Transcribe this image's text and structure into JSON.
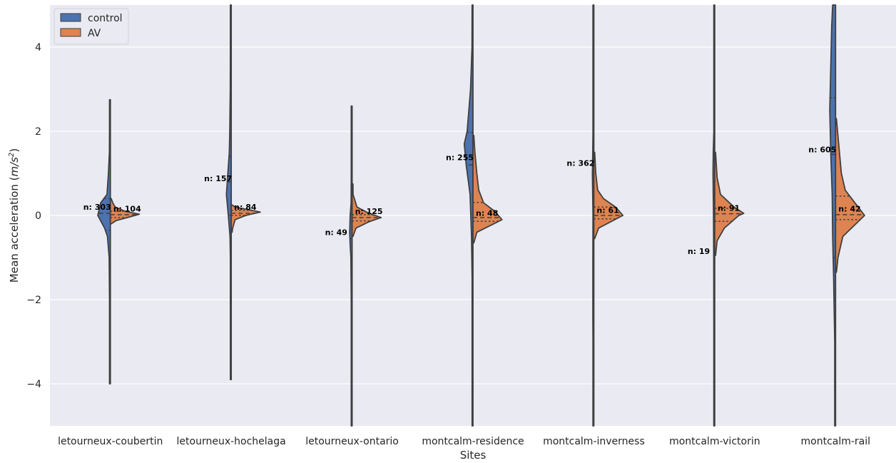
{
  "chart_data": {
    "type": "violin",
    "xlabel": "Sites",
    "ylabel_prefix": "Mean acceleration (",
    "ylabel_unit_var": "m/s",
    "ylabel_unit_exp": "2",
    "ylabel_suffix": ")",
    "ylim": [
      -5,
      5
    ],
    "yticks": [
      -4,
      -2,
      0,
      2,
      4
    ],
    "ytick_labels": [
      "−4",
      "−2",
      "0",
      "2",
      "4"
    ],
    "grid": true,
    "legend": {
      "placement": "top-left",
      "entries": [
        {
          "name": "control",
          "color": "#4c72b0"
        },
        {
          "name": "AV",
          "color": "#dd8452"
        }
      ]
    },
    "categories": [
      "letourneux-coubertin",
      "letourneux-hochelaga",
      "letourneux-ontario",
      "montcalm-residence",
      "montcalm-inverness",
      "montcalm-victorin",
      "montcalm-rail"
    ],
    "series": [
      {
        "name": "control",
        "side": "left",
        "color": "#4c72b0",
        "n_labels": [
          "n: 303",
          "n: 157",
          "n: 49",
          "n: 255",
          "n: 362",
          "n: 19",
          "n: 605"
        ],
        "n_label_y": [
          0.2,
          0.88,
          -0.4,
          1.38,
          1.25,
          -0.85,
          1.57
        ],
        "quartiles": [
          [
            -0.35,
            0.05,
            0.4
          ],
          [
            0.0,
            0.8,
            1.4
          ],
          [
            -1.45,
            -0.55,
            0.05
          ],
          [
            -0.45,
            1.2,
            1.97
          ],
          [
            -1.0,
            0.0,
            2.3
          ],
          [
            -2.7,
            -1.0,
            0.8
          ],
          [
            -1.0,
            1.45,
            2.8
          ]
        ],
        "profiles": [
          [
            [
              -4.0,
              0.002
            ],
            [
              -3.0,
              0.005
            ],
            [
              -2.0,
              0.01
            ],
            [
              -1.0,
              0.025
            ],
            [
              -0.5,
              0.06
            ],
            [
              -0.3,
              0.12
            ],
            [
              0.0,
              0.26
            ],
            [
              0.3,
              0.2
            ],
            [
              0.5,
              0.07
            ],
            [
              1.0,
              0.04
            ],
            [
              1.5,
              0.02
            ],
            [
              2.0,
              0.008
            ],
            [
              2.75,
              0.002
            ]
          ],
          [
            [
              -3.9,
              0.002
            ],
            [
              -2.0,
              0.004
            ],
            [
              -1.0,
              0.01
            ],
            [
              -0.5,
              0.025
            ],
            [
              0.0,
              0.06
            ],
            [
              0.5,
              0.1
            ],
            [
              1.0,
              0.07
            ],
            [
              1.5,
              0.04
            ],
            [
              2.0,
              0.03
            ],
            [
              3.0,
              0.02
            ],
            [
              4.0,
              0.01
            ],
            [
              5.0,
              0.006
            ]
          ],
          [
            [
              -5.0,
              0.004
            ],
            [
              -3.0,
              0.007
            ],
            [
              -2.0,
              0.012
            ],
            [
              -1.0,
              0.025
            ],
            [
              -0.7,
              0.04
            ],
            [
              -0.4,
              0.05
            ],
            [
              0.0,
              0.04
            ],
            [
              0.3,
              0.02
            ],
            [
              1.0,
              0.015
            ],
            [
              2.0,
              0.008
            ],
            [
              2.6,
              0.002
            ]
          ],
          [
            [
              -5.0,
              0.002
            ],
            [
              -3.0,
              0.007
            ],
            [
              -1.5,
              0.015
            ],
            [
              -0.5,
              0.03
            ],
            [
              0.5,
              0.06
            ],
            [
              1.2,
              0.14
            ],
            [
              1.7,
              0.18
            ],
            [
              2.0,
              0.12
            ],
            [
              3.0,
              0.05
            ],
            [
              4.0,
              0.02
            ],
            [
              5.0,
              0.008
            ]
          ],
          [
            [
              -5.0,
              0.003
            ],
            [
              -3.0,
              0.015
            ],
            [
              -2.5,
              0.02
            ],
            [
              -1.0,
              0.02
            ],
            [
              0.0,
              0.015
            ],
            [
              1.0,
              0.03
            ],
            [
              1.25,
              0.025
            ],
            [
              2.0,
              0.01
            ],
            [
              3.0,
              0.008
            ],
            [
              5.0,
              0.006
            ]
          ],
          [
            [
              -5.0,
              0.004
            ],
            [
              -3.0,
              0.01
            ],
            [
              -1.0,
              0.02
            ],
            [
              0.0,
              0.025
            ],
            [
              0.5,
              0.03
            ],
            [
              1.0,
              0.035
            ],
            [
              1.5,
              0.03
            ],
            [
              2.0,
              0.01
            ],
            [
              3.0,
              0.008
            ],
            [
              5.0,
              0.005
            ]
          ],
          [
            [
              -5.0,
              0.002
            ],
            [
              -3.0,
              0.015
            ],
            [
              -1.5,
              0.04
            ],
            [
              -0.5,
              0.06
            ],
            [
              0.5,
              0.07
            ],
            [
              1.5,
              0.1
            ],
            [
              2.5,
              0.12
            ],
            [
              3.5,
              0.1
            ],
            [
              4.5,
              0.08
            ],
            [
              5.0,
              0.06
            ]
          ]
        ]
      },
      {
        "name": "AV",
        "side": "right",
        "color": "#dd8452",
        "n_labels": [
          "n: 104",
          "n: 84",
          "n: 125",
          "n: 48",
          "n: 61",
          "n: 91",
          "n: 42"
        ],
        "n_label_y": [
          0.16,
          0.2,
          0.1,
          0.06,
          0.13,
          0.18,
          0.16
        ],
        "quartiles": [
          [
            -0.05,
            0.02,
            0.1
          ],
          [
            0.0,
            0.05,
            0.12
          ],
          [
            -0.13,
            -0.05,
            0.02
          ],
          [
            -0.14,
            -0.05,
            0.31
          ],
          [
            -0.08,
            0.0,
            0.2
          ],
          [
            -0.14,
            0.04,
            0.17
          ],
          [
            -0.1,
            0.02,
            0.46
          ]
        ],
        "profiles": [
          [
            [
              -0.2,
              0.0
            ],
            [
              -0.12,
              0.12
            ],
            [
              -0.05,
              0.35
            ],
            [
              0.03,
              0.6
            ],
            [
              0.1,
              0.3
            ],
            [
              0.2,
              0.1
            ],
            [
              0.3,
              0.05
            ],
            [
              0.4,
              0.0
            ]
          ],
          [
            [
              -0.4,
              0.0
            ],
            [
              -0.3,
              0.03
            ],
            [
              -0.1,
              0.08
            ],
            [
              0.0,
              0.3
            ],
            [
              0.08,
              0.6
            ],
            [
              0.15,
              0.3
            ],
            [
              0.2,
              0.08
            ],
            [
              0.25,
              0.0
            ]
          ],
          [
            [
              -0.5,
              0.0
            ],
            [
              -0.3,
              0.08
            ],
            [
              -0.15,
              0.35
            ],
            [
              -0.05,
              0.6
            ],
            [
              0.05,
              0.35
            ],
            [
              0.2,
              0.1
            ],
            [
              0.5,
              0.02
            ],
            [
              0.75,
              0.0
            ]
          ],
          [
            [
              -0.65,
              0.0
            ],
            [
              -0.4,
              0.08
            ],
            [
              -0.1,
              0.6
            ],
            [
              0.1,
              0.45
            ],
            [
              0.3,
              0.22
            ],
            [
              0.6,
              0.12
            ],
            [
              1.0,
              0.08
            ],
            [
              1.5,
              0.04
            ],
            [
              1.9,
              0.0
            ]
          ],
          [
            [
              -0.55,
              0.0
            ],
            [
              -0.3,
              0.1
            ],
            [
              0.0,
              0.6
            ],
            [
              0.2,
              0.45
            ],
            [
              0.4,
              0.2
            ],
            [
              0.6,
              0.08
            ],
            [
              1.0,
              0.04
            ],
            [
              1.5,
              0.0
            ]
          ],
          [
            [
              -0.95,
              0.0
            ],
            [
              -0.6,
              0.05
            ],
            [
              -0.3,
              0.2
            ],
            [
              0.0,
              0.5
            ],
            [
              0.05,
              0.6
            ],
            [
              0.2,
              0.4
            ],
            [
              0.5,
              0.12
            ],
            [
              0.9,
              0.05
            ],
            [
              1.5,
              0.0
            ]
          ],
          [
            [
              -1.35,
              0.0
            ],
            [
              -1.0,
              0.05
            ],
            [
              -0.5,
              0.15
            ],
            [
              0.0,
              0.6
            ],
            [
              0.3,
              0.4
            ],
            [
              0.6,
              0.2
            ],
            [
              1.0,
              0.12
            ],
            [
              1.5,
              0.08
            ],
            [
              2.3,
              0.0
            ]
          ]
        ]
      }
    ]
  }
}
